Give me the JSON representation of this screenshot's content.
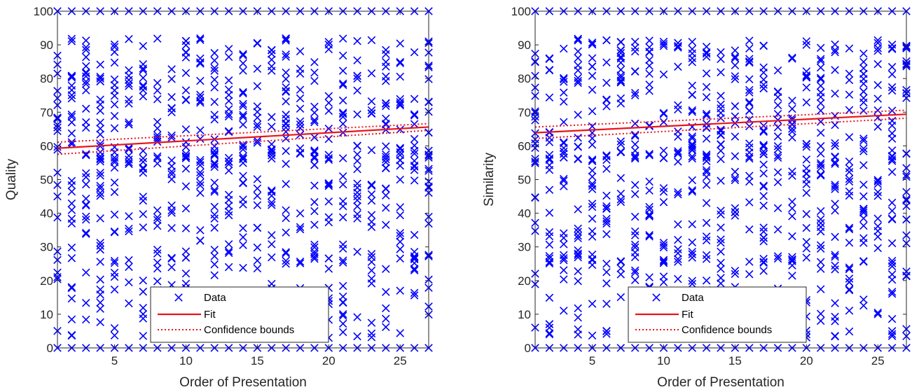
{
  "colors": {
    "data": "#0000ff",
    "fit": "#e8141b",
    "axis": "#262626"
  },
  "chart_data": [
    {
      "type": "scatter",
      "xlabel": "Order of Presentation",
      "ylabel": "Quality",
      "xlim": [
        1,
        27
      ],
      "ylim": [
        0,
        100
      ],
      "xticks": [
        5,
        10,
        15,
        20,
        25
      ],
      "yticks": [
        0,
        10,
        20,
        30,
        40,
        50,
        60,
        70,
        80,
        90,
        100
      ],
      "grid": false,
      "legend": {
        "placement": "bottom-center",
        "entries": [
          "Data",
          "Fit",
          "Confidence bounds"
        ]
      },
      "fit": {
        "x": [
          1,
          27
        ],
        "y": [
          59.3,
          65.6
        ]
      },
      "confidence_bounds": {
        "x": [
          1,
          27
        ],
        "upper": [
          61.1,
          66.6
        ],
        "lower": [
          57.5,
          64.6
        ]
      },
      "series": [
        {
          "name": "Data",
          "marker": "x",
          "x": [
            1,
            2,
            3,
            4,
            5,
            6,
            7,
            8,
            9,
            10,
            11,
            12,
            13,
            14,
            15,
            16,
            17,
            18,
            19,
            20,
            21,
            22,
            23,
            24,
            25,
            26,
            27
          ]
        }
      ]
    },
    {
      "type": "scatter",
      "xlabel": "Order of Presentation",
      "ylabel": "Similarity",
      "xlim": [
        1,
        27
      ],
      "ylim": [
        0,
        100
      ],
      "xticks": [
        5,
        10,
        15,
        20,
        25
      ],
      "yticks": [
        0,
        10,
        20,
        30,
        40,
        50,
        60,
        70,
        80,
        90,
        100
      ],
      "grid": false,
      "legend": {
        "placement": "bottom-center",
        "entries": [
          "Data",
          "Fit",
          "Confidence bounds"
        ]
      },
      "fit": {
        "x": [
          1,
          27
        ],
        "y": [
          63.9,
          69.4
        ]
      },
      "confidence_bounds": {
        "x": [
          1,
          27
        ],
        "upper": [
          65.6,
          70.6
        ],
        "lower": [
          62.2,
          68.2
        ]
      },
      "series": [
        {
          "name": "Data",
          "marker": "x",
          "x": [
            1,
            2,
            3,
            4,
            5,
            6,
            7,
            8,
            9,
            10,
            11,
            12,
            13,
            14,
            15,
            16,
            17,
            18,
            19,
            20,
            21,
            22,
            23,
            24,
            25,
            26,
            27
          ]
        }
      ]
    }
  ]
}
